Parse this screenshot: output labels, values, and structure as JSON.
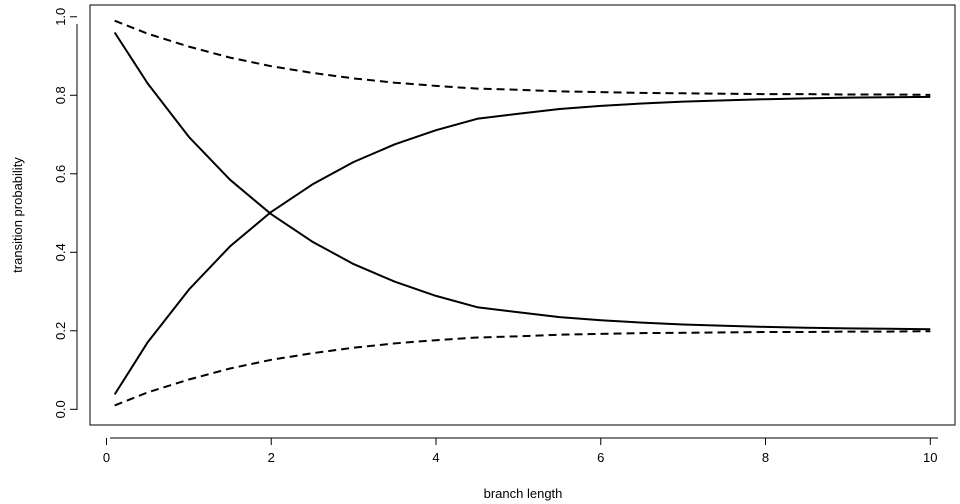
{
  "chart_data": {
    "type": "line",
    "title": "",
    "xlabel": "branch length",
    "ylabel": "transition probability",
    "xlim": [
      -0.2,
      10.3
    ],
    "ylim": [
      -0.04,
      1.03
    ],
    "xticks": [
      0,
      2,
      4,
      6,
      8,
      10
    ],
    "yticks": [
      0.0,
      0.2,
      0.4,
      0.6,
      0.8,
      1.0
    ],
    "xtick_labels": [
      "0",
      "2",
      "4",
      "6",
      "8",
      "10"
    ],
    "ytick_labels": [
      "0.0",
      "0.2",
      "0.4",
      "0.6",
      "0.8",
      "1.0"
    ],
    "grid": false,
    "legend": "none",
    "series": [
      {
        "style": "solid",
        "x": [
          0.1,
          0.5,
          1,
          1.5,
          2,
          2.5,
          3,
          3.5,
          4,
          4.5,
          5,
          5.5,
          6,
          6.5,
          7,
          7.5,
          8,
          8.5,
          9,
          9.5,
          10
        ],
        "y": [
          0.96,
          0.83,
          0.694,
          0.585,
          0.497,
          0.427,
          0.37,
          0.325,
          0.289,
          0.26,
          0.247,
          0.235,
          0.227,
          0.221,
          0.216,
          0.213,
          0.21,
          0.208,
          0.206,
          0.205,
          0.204
        ]
      },
      {
        "style": "solid",
        "x": [
          0.1,
          0.5,
          1,
          1.5,
          2,
          2.5,
          3,
          3.5,
          4,
          4.5,
          5,
          5.5,
          6,
          6.5,
          7,
          7.5,
          8,
          8.5,
          9,
          9.5,
          10
        ],
        "y": [
          0.038,
          0.171,
          0.305,
          0.415,
          0.503,
          0.573,
          0.63,
          0.675,
          0.711,
          0.74,
          0.753,
          0.765,
          0.773,
          0.779,
          0.784,
          0.787,
          0.79,
          0.792,
          0.794,
          0.795,
          0.796
        ]
      },
      {
        "style": "dashed",
        "x": [
          0.1,
          0.5,
          1,
          1.5,
          2,
          2.5,
          3,
          3.5,
          4,
          4.5,
          5,
          5.5,
          6,
          6.5,
          7,
          7.5,
          8,
          8.5,
          9,
          9.5,
          10
        ],
        "y": [
          0.99,
          0.957,
          0.924,
          0.896,
          0.874,
          0.857,
          0.843,
          0.832,
          0.824,
          0.817,
          0.814,
          0.81,
          0.808,
          0.806,
          0.805,
          0.804,
          0.803,
          0.803,
          0.802,
          0.802,
          0.801
        ]
      },
      {
        "style": "dashed",
        "x": [
          0.1,
          0.5,
          1,
          1.5,
          2,
          2.5,
          3,
          3.5,
          4,
          4.5,
          5,
          5.5,
          6,
          6.5,
          7,
          7.5,
          8,
          8.5,
          9,
          9.5,
          10
        ],
        "y": [
          0.01,
          0.043,
          0.076,
          0.104,
          0.126,
          0.143,
          0.157,
          0.168,
          0.176,
          0.183,
          0.186,
          0.19,
          0.192,
          0.194,
          0.195,
          0.196,
          0.197,
          0.197,
          0.198,
          0.198,
          0.199
        ]
      }
    ]
  }
}
